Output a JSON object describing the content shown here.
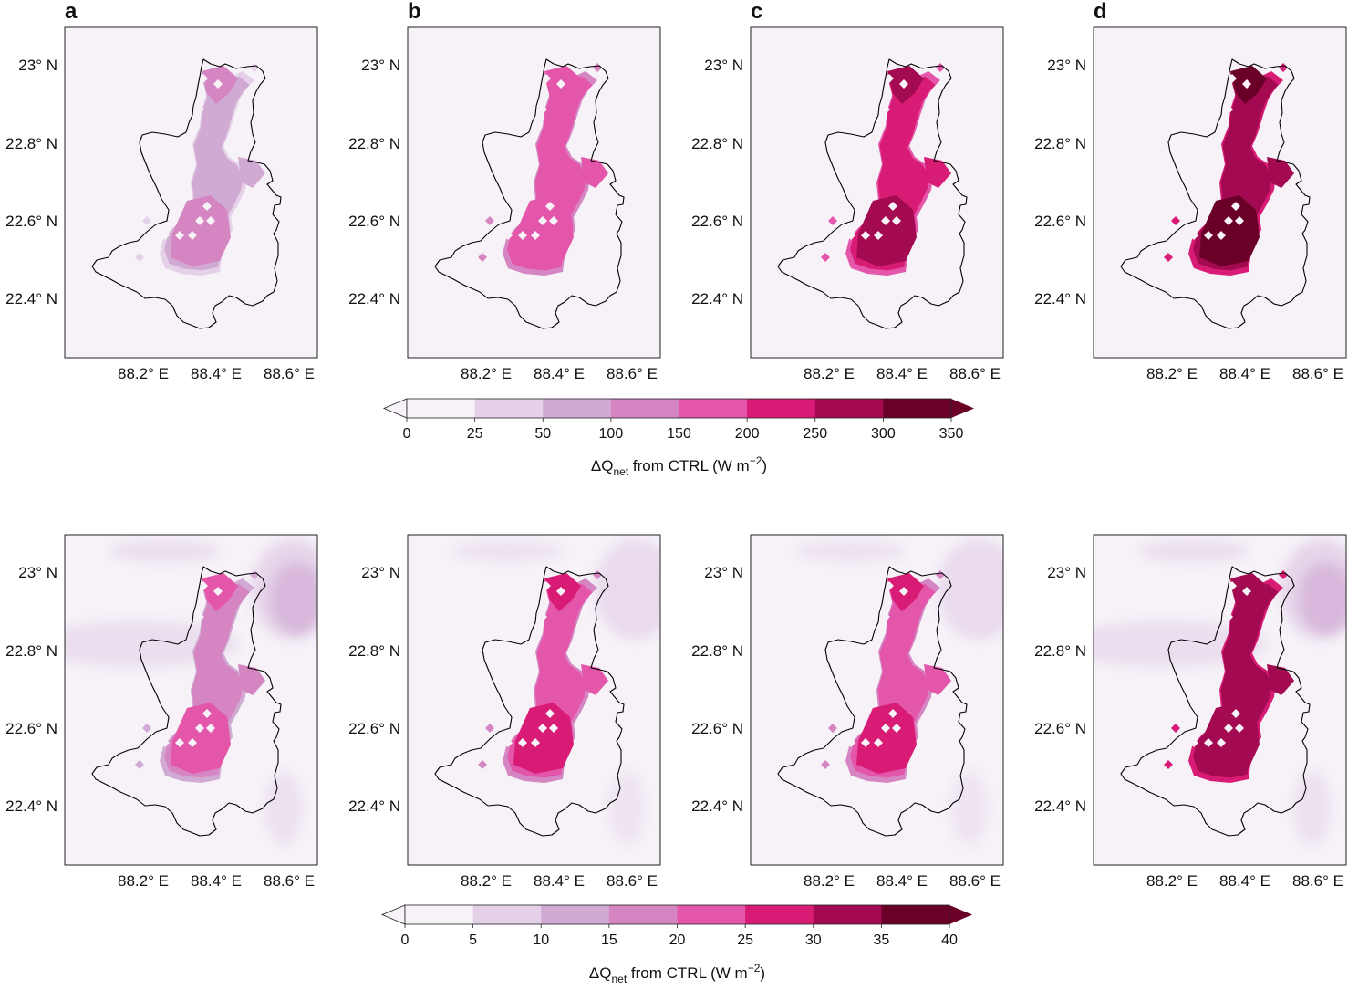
{
  "figure": {
    "panel_letters": [
      "a",
      "b",
      "c",
      "d"
    ],
    "lat_ticks": [
      "23° N",
      "22.8° N",
      "22.6° N",
      "22.4° N"
    ],
    "lon_ticks": [
      "88.2° E",
      "88.4° E",
      "88.6° E"
    ],
    "background_color": "#f6f2f8",
    "boundary_color": "#000000"
  },
  "colorbars": [
    {
      "ticks": [
        "0",
        "25",
        "50",
        "100",
        "150",
        "200",
        "250",
        "300",
        "350"
      ],
      "colors": [
        "#f6f2f8",
        "#e4d1e8",
        "#d1aad4",
        "#d585c1",
        "#e356a9",
        "#d81b74",
        "#a30a52",
        "#6a0028"
      ],
      "label_prefix": "ΔQ",
      "label_subscript": "net",
      "label_middle": " from CTRL (W m",
      "label_superscript": "−2",
      "label_suffix": ")"
    },
    {
      "ticks": [
        "0",
        "5",
        "10",
        "15",
        "20",
        "25",
        "30",
        "35",
        "40"
      ],
      "colors": [
        "#f6f2f8",
        "#e4d1e8",
        "#d1aad4",
        "#d585c1",
        "#e356a9",
        "#d81b74",
        "#a30a52",
        "#6a0028"
      ],
      "label_prefix": "ΔQ",
      "label_subscript": "net",
      "label_middle": " from CTRL (W m",
      "label_superscript": "−2",
      "label_suffix": ")"
    }
  ],
  "map_data": {
    "rows": [
      {
        "panels": [
          {
            "letter": "a",
            "urban_level": 2,
            "peak_level": 3,
            "regional_haze": 0
          },
          {
            "letter": "b",
            "urban_level": 4,
            "peak_level": 4,
            "regional_haze": 0
          },
          {
            "letter": "c",
            "urban_level": 5,
            "peak_level": 6,
            "regional_haze": 0
          },
          {
            "letter": "d",
            "urban_level": 6,
            "peak_level": 7,
            "regional_haze": 0
          }
        ]
      },
      {
        "panels": [
          {
            "letter": "a",
            "urban_level": 3,
            "peak_level": 4,
            "regional_haze": 2
          },
          {
            "letter": "b",
            "urban_level": 4,
            "peak_level": 5,
            "regional_haze": 1
          },
          {
            "letter": "c",
            "urban_level": 4,
            "peak_level": 5,
            "regional_haze": 1
          },
          {
            "letter": "d",
            "urban_level": 6,
            "peak_level": 6,
            "regional_haze": 2
          }
        ]
      }
    ]
  }
}
